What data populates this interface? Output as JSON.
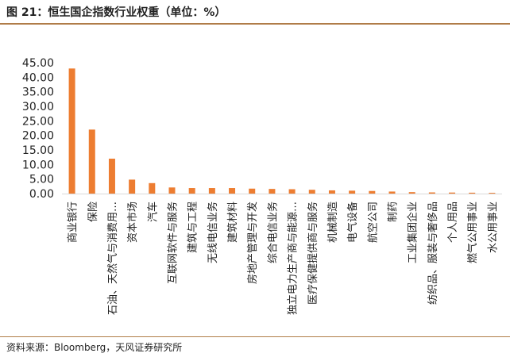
{
  "header": {
    "title": "图 21：恒生国企指数行业权重（单位：%）"
  },
  "footer": {
    "source": "资料来源：Bloomberg，天风证券研究所"
  },
  "colors": {
    "bar": "#ed7d31",
    "axis": "#d9d9d9",
    "rule": "#b07c48",
    "text": "#222222"
  },
  "chart_data": {
    "type": "bar",
    "title": "恒生国企指数行业权重（单位：%）",
    "xlabel": "",
    "ylabel": "",
    "ylim": [
      0,
      45
    ],
    "yticks": [
      "0.00",
      "5.00",
      "10.00",
      "15.00",
      "20.00",
      "25.00",
      "30.00",
      "35.00",
      "40.00",
      "45.00"
    ],
    "grid": false,
    "categories": [
      "商业银行",
      "保险",
      "石油、天然气与消费用…",
      "资本市场",
      "汽车",
      "互联网软件与服务",
      "建筑与工程",
      "无线电信业务",
      "建筑材料",
      "房地产管理与开发",
      "综合电信业务",
      "独立电力生产商与能源…",
      "医疗保健提供商与服务",
      "机械制造",
      "电气设备",
      "航空公司",
      "制药",
      "工业集团企业",
      "纺织品、服装与奢侈品",
      "个人用品",
      "燃气公用事业",
      "水公用事业"
    ],
    "values": [
      43.0,
      22.0,
      12.0,
      4.8,
      3.6,
      2.1,
      1.9,
      1.9,
      1.9,
      1.7,
      1.6,
      1.5,
      1.3,
      1.1,
      1.0,
      0.9,
      0.7,
      0.5,
      0.4,
      0.35,
      0.3,
      0.25
    ]
  }
}
